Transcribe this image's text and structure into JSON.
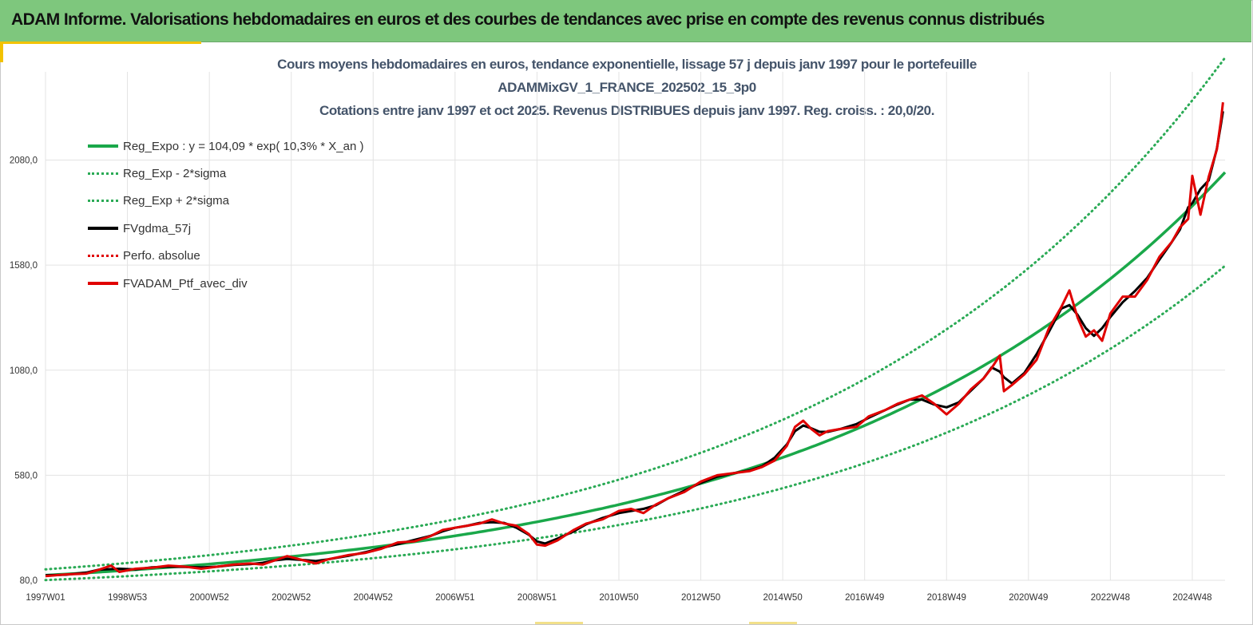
{
  "banner": {
    "title": "ADAM Informe. Valorisations hebdomadaires en euros et des courbes de tendances avec prise en compte des revenus connus distribués"
  },
  "colors": {
    "banner_bg": "#7ec77d",
    "accent": "#f2c200",
    "title_text": "#44546a",
    "reg_expo": "#1aa84a",
    "sigma_bands": "#2aaa55",
    "fv_gdma": "#000000",
    "perfo_absolue": "#e00000",
    "fv_adam": "#e00000",
    "grid": "#e3e3e3"
  },
  "chart_data": {
    "type": "line",
    "title_lines": [
      "Cours moyens hebdomadaires  en euros, tendance exponentielle, lissage 57 j depuis janv 1997 pour le portefeuille",
      "ADAMMixGV_1_FRANCE_202502_15_3p0",
      "Cotations  entre janv 1997 et oct 2025. Revenus DISTRIBUES depuis janv 1997. Reg. croiss. : 20,0/20."
    ],
    "x_range": [
      1997.0,
      2025.8
    ],
    "x_ticks": [
      {
        "label": "1997W01",
        "year": 1997.0
      },
      {
        "label": "1998W53",
        "year": 1999.0
      },
      {
        "label": "2000W52",
        "year": 2001.0
      },
      {
        "label": "2002W52",
        "year": 2003.0
      },
      {
        "label": "2004W52",
        "year": 2005.0
      },
      {
        "label": "2006W51",
        "year": 2007.0
      },
      {
        "label": "2008W51",
        "year": 2009.0
      },
      {
        "label": "2010W50",
        "year": 2011.0
      },
      {
        "label": "2012W50",
        "year": 2013.0
      },
      {
        "label": "2014W50",
        "year": 2015.0
      },
      {
        "label": "2016W49",
        "year": 2017.0
      },
      {
        "label": "2018W49",
        "year": 2019.0
      },
      {
        "label": "2020W49",
        "year": 2021.0
      },
      {
        "label": "2022W48",
        "year": 2023.0
      },
      {
        "label": "2024W48",
        "year": 2025.0
      }
    ],
    "y_range": [
      80,
      2500
    ],
    "y_ticks": [
      {
        "label": "80,0",
        "value": 80
      },
      {
        "label": "580,0",
        "value": 580
      },
      {
        "label": "1080,0",
        "value": 1080
      },
      {
        "label": "1580,0",
        "value": 1580
      },
      {
        "label": "2080,0",
        "value": 2080
      }
    ],
    "grid": true,
    "legend_position": "top-left",
    "legend": [
      {
        "name": "Reg_Expo : y = 104,09 * exp( 10,3% *  X_an )",
        "style": "solid-green"
      },
      {
        "name": "Reg_Exp - 2*sigma",
        "style": "dotted-green"
      },
      {
        "name": "Reg_Exp + 2*sigma",
        "style": "dotted-green"
      },
      {
        "name": "FVgdma_57j",
        "style": "solid-black"
      },
      {
        "name": "Perfo. absolue",
        "style": "dotted-red"
      },
      {
        "name": "FVADAM_Ptf_avec_div",
        "style": "solid-red"
      }
    ],
    "regression": {
      "a": 104.09,
      "rate": 0.103,
      "lower_factor": 0.78,
      "upper_factor": 1.27
    },
    "series": [
      {
        "name": "FVADAM_Ptf_avec_div",
        "points": [
          [
            1997.0,
            100
          ],
          [
            1997.5,
            108
          ],
          [
            1998.0,
            112
          ],
          [
            1998.3,
            130
          ],
          [
            1998.6,
            150
          ],
          [
            1998.8,
            120
          ],
          [
            1999.2,
            135
          ],
          [
            1999.6,
            140
          ],
          [
            2000.0,
            150
          ],
          [
            2000.4,
            145
          ],
          [
            2000.8,
            135
          ],
          [
            2001.2,
            145
          ],
          [
            2001.6,
            155
          ],
          [
            2002.0,
            160
          ],
          [
            2002.3,
            155
          ],
          [
            2002.6,
            175
          ],
          [
            2002.9,
            195
          ],
          [
            2003.3,
            175
          ],
          [
            2003.6,
            160
          ],
          [
            2003.9,
            180
          ],
          [
            2004.4,
            200
          ],
          [
            2004.8,
            210
          ],
          [
            2005.2,
            230
          ],
          [
            2005.6,
            260
          ],
          [
            2006.0,
            265
          ],
          [
            2006.4,
            290
          ],
          [
            2006.7,
            320
          ],
          [
            2007.0,
            330
          ],
          [
            2007.3,
            340
          ],
          [
            2007.6,
            350
          ],
          [
            2007.9,
            370
          ],
          [
            2008.2,
            350
          ],
          [
            2008.5,
            340
          ],
          [
            2008.8,
            300
          ],
          [
            2009.0,
            250
          ],
          [
            2009.2,
            245
          ],
          [
            2009.5,
            270
          ],
          [
            2009.9,
            320
          ],
          [
            2010.2,
            350
          ],
          [
            2010.6,
            370
          ],
          [
            2011.0,
            410
          ],
          [
            2011.3,
            420
          ],
          [
            2011.6,
            400
          ],
          [
            2011.9,
            440
          ],
          [
            2012.2,
            470
          ],
          [
            2012.6,
            500
          ],
          [
            2013.0,
            550
          ],
          [
            2013.4,
            580
          ],
          [
            2013.8,
            590
          ],
          [
            2014.2,
            600
          ],
          [
            2014.5,
            620
          ],
          [
            2014.8,
            650
          ],
          [
            2015.1,
            720
          ],
          [
            2015.3,
            810
          ],
          [
            2015.5,
            840
          ],
          [
            2015.7,
            800
          ],
          [
            2015.9,
            770
          ],
          [
            2016.1,
            790
          ],
          [
            2016.4,
            800
          ],
          [
            2016.8,
            810
          ],
          [
            2017.1,
            860
          ],
          [
            2017.5,
            890
          ],
          [
            2017.8,
            920
          ],
          [
            2018.1,
            940
          ],
          [
            2018.4,
            960
          ],
          [
            2018.7,
            920
          ],
          [
            2019.0,
            870
          ],
          [
            2019.3,
            920
          ],
          [
            2019.6,
            990
          ],
          [
            2019.9,
            1040
          ],
          [
            2020.1,
            1090
          ],
          [
            2020.3,
            1150
          ],
          [
            2020.4,
            980
          ],
          [
            2020.6,
            1010
          ],
          [
            2020.9,
            1060
          ],
          [
            2021.2,
            1130
          ],
          [
            2021.5,
            1280
          ],
          [
            2021.8,
            1380
          ],
          [
            2022.0,
            1460
          ],
          [
            2022.2,
            1330
          ],
          [
            2022.4,
            1240
          ],
          [
            2022.6,
            1270
          ],
          [
            2022.8,
            1220
          ],
          [
            2023.0,
            1350
          ],
          [
            2023.3,
            1430
          ],
          [
            2023.6,
            1430
          ],
          [
            2023.9,
            1510
          ],
          [
            2024.2,
            1620
          ],
          [
            2024.5,
            1690
          ],
          [
            2024.7,
            1760
          ],
          [
            2024.9,
            1800
          ],
          [
            2025.0,
            2005
          ],
          [
            2025.2,
            1820
          ],
          [
            2025.4,
            2000
          ],
          [
            2025.6,
            2130
          ],
          [
            2025.7,
            2270
          ],
          [
            2025.75,
            2355
          ]
        ]
      }
    ]
  }
}
